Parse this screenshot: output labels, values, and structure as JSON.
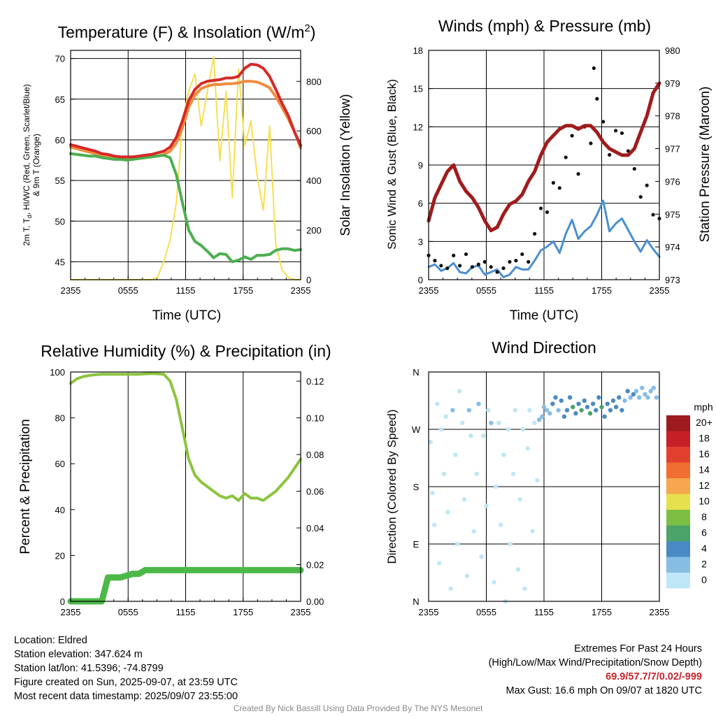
{
  "charts": {
    "temperature": {
      "title": "Temperature (F) & Insolation (W/m",
      "title_sup": "2",
      "title_end": ")",
      "xlabel": "Time (UTC)",
      "ylabel_line1": "2m T, T",
      "ylabel_sub": "d",
      "ylabel_line1_end": ", HI/WC (Red, Green, Scarlet/Blue)",
      "ylabel_line2": "& 9m T (Orange)",
      "y2label": "Solar Insolation (Yellow)"
    },
    "winds": {
      "title": "Winds (mph) & Pressure (mb)",
      "xlabel": "Time (UTC)",
      "ylabel": "Sonic Wind & Gust (Blue, Black)",
      "y2label": "Station Pressure (Maroon)"
    },
    "humidity": {
      "title": "Relative Humidity (%) & Precipitation (in)",
      "ylabel": "Percent & Precipitation"
    },
    "direction": {
      "title": "Wind Direction",
      "ylabel": "Direction (Colored By Speed)",
      "legend_title": "mph"
    }
  },
  "chart_data": [
    {
      "type": "line",
      "id": "temperature",
      "x_ticks": [
        "2355",
        "0555",
        "1155",
        "1755",
        "2355"
      ],
      "ylim": [
        42.8,
        71
      ],
      "y_ticks": [
        45,
        50,
        55,
        60,
        65,
        70
      ],
      "y2lim": [
        0,
        925
      ],
      "y2_ticks": [
        0,
        200,
        400,
        600,
        800
      ],
      "series": [
        {
          "color": "#f08c3c",
          "values": [
            59.1,
            58.9,
            58.7,
            58.5,
            58.3,
            58.1,
            58.0,
            57.8,
            57.7,
            57.6,
            57.6,
            57.7,
            57.8,
            57.9,
            58.0,
            58.2,
            58.6,
            59.6,
            61.5,
            64.0,
            65.5,
            66.3,
            66.6,
            66.8,
            66.8,
            66.9,
            66.9,
            67.0,
            67.2,
            67.2,
            67.1,
            66.8,
            66.4,
            65.3,
            64.0,
            62.6,
            61.0,
            59.0
          ]
        },
        {
          "color": "#4caf50",
          "values": [
            58.3,
            58.2,
            58.1,
            58.0,
            58.0,
            57.8,
            57.7,
            57.6,
            57.6,
            57.5,
            57.6,
            57.7,
            57.8,
            57.9,
            58.0,
            58.1,
            57.8,
            55.7,
            52.2,
            48.9,
            47.5,
            47.0,
            46.3,
            45.5,
            46.0,
            45.9,
            45.0,
            45.2,
            45.6,
            45.3,
            45.8,
            45.8,
            45.9,
            46.4,
            46.6,
            46.6,
            46.4,
            46.5
          ]
        },
        {
          "color": "#d62828",
          "values": [
            59.4,
            59.2,
            59.0,
            58.8,
            58.6,
            58.3,
            58.2,
            58.0,
            57.9,
            57.9,
            57.9,
            58.0,
            58.1,
            58.2,
            58.4,
            58.6,
            59.1,
            60.3,
            62.4,
            64.8,
            66.2,
            66.9,
            67.2,
            67.3,
            67.4,
            67.6,
            67.6,
            67.8,
            68.8,
            69.3,
            69.2,
            68.8,
            67.8,
            66.2,
            64.5,
            63.0,
            61.0,
            59.3
          ]
        }
      ],
      "insolation": {
        "color": "#f5e050",
        "values": [
          0,
          0,
          0,
          0,
          0,
          0,
          0,
          0,
          0,
          0,
          0,
          0,
          0,
          0,
          10,
          75,
          160,
          310,
          640,
          760,
          830,
          620,
          760,
          900,
          480,
          760,
          330,
          850,
          540,
          640,
          420,
          280,
          620,
          140,
          40,
          10,
          0,
          0
        ]
      }
    },
    {
      "type": "line",
      "id": "winds",
      "x_ticks": [
        "2355",
        "0555",
        "1155",
        "1755",
        "2355"
      ],
      "ylim": [
        0,
        18
      ],
      "y_ticks": [
        0,
        3,
        6,
        9,
        12,
        15,
        18
      ],
      "y2lim": [
        973,
        980
      ],
      "y2_ticks": [
        973,
        974,
        975,
        976,
        977,
        978,
        979,
        980
      ],
      "max_gust": 16.6,
      "wind": {
        "color": "#4a8fd1",
        "values": [
          1.0,
          1.2,
          0.7,
          0.9,
          1.3,
          0.6,
          0.5,
          1.0,
          1.1,
          0.4,
          0.6,
          0.8,
          0.2,
          0.4,
          1.0,
          0.8,
          0.8,
          1.5,
          2.3,
          2.6,
          3.0,
          2.1,
          3.6,
          4.7,
          3.2,
          3.8,
          4.2,
          5.1,
          6.2,
          3.8,
          4.4,
          4.8,
          3.9,
          3.0,
          2.2,
          3.1,
          2.4,
          1.8
        ]
      },
      "gust": {
        "color": "#111111",
        "values": [
          1.9,
          1.5,
          1.1,
          0.9,
          1.9,
          1.1,
          2.0,
          1.0,
          1.2,
          1.4,
          1.0,
          0.6,
          0.9,
          1.4,
          1.5,
          2.0,
          1.4,
          3.6,
          5.6,
          5.3,
          7.6,
          7.2,
          9.6,
          11.3,
          8.3,
          12.0,
          10.7,
          14.2,
          12.4,
          9.8,
          11.7,
          11.5,
          10.1,
          8.7,
          6.5,
          7.4,
          5.1,
          4.8
        ]
      },
      "pressure": {
        "color": "#a01c1c",
        "values": [
          974.8,
          975.5,
          975.9,
          976.3,
          976.5,
          976.0,
          975.7,
          975.5,
          975.2,
          974.8,
          974.5,
          974.6,
          975.0,
          975.3,
          975.4,
          975.6,
          976.0,
          976.3,
          976.8,
          977.2,
          977.4,
          977.6,
          977.7,
          977.7,
          977.6,
          977.7,
          977.7,
          977.5,
          977.2,
          977.0,
          976.9,
          976.8,
          976.8,
          977.0,
          977.5,
          978.0,
          978.7,
          979.0
        ]
      }
    },
    {
      "type": "line",
      "id": "humidity",
      "x_ticks": [
        "2355",
        "0555",
        "1155",
        "1755",
        "2355"
      ],
      "ylim": [
        0,
        100
      ],
      "y_ticks": [
        0,
        20,
        40,
        60,
        80,
        100
      ],
      "y2lim": [
        0,
        0.125
      ],
      "y2_ticks": [
        "0.00",
        "0.02",
        "0.04",
        "0.06",
        "0.08",
        "0.10",
        "0.12"
      ],
      "rh": {
        "color": "#8cc43e",
        "values": [
          95,
          97,
          98,
          98.5,
          98.8,
          99,
          99,
          99,
          99,
          99,
          99,
          99,
          99.2,
          99.3,
          99.2,
          99,
          96,
          88,
          75,
          62,
          55,
          52,
          50,
          48,
          46,
          45,
          46,
          44,
          47,
          45,
          45,
          44,
          46,
          48,
          51,
          54,
          58,
          62
        ]
      },
      "precip": {
        "color": "#4cb848",
        "values": [
          0,
          0,
          0,
          0,
          0,
          0,
          0.013,
          0.013,
          0.013,
          0.014,
          0.015,
          0.015,
          0.017,
          0.017,
          0.017,
          0.017,
          0.017,
          0.017,
          0.017,
          0.017,
          0.017,
          0.017,
          0.017,
          0.017,
          0.017,
          0.017,
          0.017,
          0.017,
          0.017,
          0.017,
          0.017,
          0.017,
          0.017,
          0.017,
          0.017,
          0.017,
          0.017,
          0.017
        ]
      }
    },
    {
      "type": "scatter",
      "id": "direction",
      "x_ticks": [
        "2355",
        "0555",
        "1155",
        "1755",
        "2355"
      ],
      "y_ticks": [
        "N",
        "E",
        "S",
        "W",
        "N"
      ],
      "legend_labels": [
        "0",
        "2",
        "4",
        "6",
        "8",
        "10",
        "12",
        "14",
        "16",
        "18",
        "20+"
      ],
      "legend_colors": [
        "#bfe6f7",
        "#86bde4",
        "#4a8ac4",
        "#4ba36a",
        "#7dbf42",
        "#e7e04e",
        "#f6a64d",
        "#f06e2f",
        "#e2402e",
        "#c62026",
        "#9e1a1e"
      ],
      "points": [
        [
          0.2,
          250,
          0
        ],
        [
          0.4,
          170,
          0
        ],
        [
          0.6,
          120,
          0
        ],
        [
          0.9,
          310,
          0
        ],
        [
          1.1,
          60,
          0
        ],
        [
          1.3,
          270,
          0
        ],
        [
          1.6,
          200,
          0
        ],
        [
          1.8,
          290,
          0
        ],
        [
          2.0,
          140,
          0
        ],
        [
          2.3,
          20,
          0
        ],
        [
          2.5,
          300,
          1
        ],
        [
          2.8,
          230,
          0
        ],
        [
          3.0,
          90,
          0
        ],
        [
          3.2,
          330,
          0
        ],
        [
          3.5,
          280,
          0
        ],
        [
          3.7,
          160,
          0
        ],
        [
          4.0,
          40,
          0
        ],
        [
          4.2,
          300,
          1
        ],
        [
          4.4,
          260,
          0
        ],
        [
          4.7,
          110,
          0
        ],
        [
          5.0,
          200,
          0
        ],
        [
          5.2,
          310,
          1
        ],
        [
          5.5,
          70,
          0
        ],
        [
          5.7,
          260,
          0
        ],
        [
          6.0,
          150,
          0
        ],
        [
          6.2,
          300,
          0
        ],
        [
          6.5,
          280,
          1
        ],
        [
          6.8,
          30,
          0
        ],
        [
          7.0,
          180,
          0
        ],
        [
          7.3,
          280,
          0
        ],
        [
          7.5,
          120,
          0
        ],
        [
          7.8,
          230,
          0
        ],
        [
          8.0,
          0,
          0
        ],
        [
          8.3,
          270,
          0
        ],
        [
          8.5,
          90,
          0
        ],
        [
          8.8,
          200,
          0
        ],
        [
          9.0,
          300,
          0
        ],
        [
          9.3,
          50,
          0
        ],
        [
          9.5,
          160,
          0
        ],
        [
          9.8,
          270,
          0
        ],
        [
          10.0,
          20,
          0
        ],
        [
          10.3,
          240,
          0
        ],
        [
          10.5,
          300,
          0
        ],
        [
          10.8,
          110,
          0
        ],
        [
          11.0,
          280,
          0
        ],
        [
          11.3,
          190,
          0
        ],
        [
          11.5,
          285,
          1
        ],
        [
          11.8,
          290,
          1
        ],
        [
          12.0,
          305,
          1
        ],
        [
          12.3,
          300,
          1
        ],
        [
          12.6,
          295,
          1
        ],
        [
          12.9,
          310,
          2
        ],
        [
          13.2,
          320,
          2
        ],
        [
          13.5,
          300,
          1
        ],
        [
          13.8,
          315,
          2
        ],
        [
          14.1,
          290,
          2
        ],
        [
          14.4,
          300,
          2
        ],
        [
          14.7,
          320,
          2
        ],
        [
          15.0,
          305,
          3
        ],
        [
          15.3,
          295,
          2
        ],
        [
          15.6,
          310,
          2
        ],
        [
          15.9,
          300,
          3
        ],
        [
          16.2,
          315,
          2
        ],
        [
          16.5,
          305,
          2
        ],
        [
          16.8,
          295,
          3
        ],
        [
          17.1,
          310,
          2
        ],
        [
          17.4,
          300,
          2
        ],
        [
          17.7,
          320,
          2
        ],
        [
          18.0,
          305,
          3
        ],
        [
          18.3,
          290,
          2
        ],
        [
          18.6,
          310,
          2
        ],
        [
          18.9,
          300,
          2
        ],
        [
          19.2,
          315,
          2
        ],
        [
          19.5,
          305,
          2
        ],
        [
          19.8,
          320,
          2
        ],
        [
          20.1,
          300,
          2
        ],
        [
          20.4,
          315,
          1
        ],
        [
          20.7,
          330,
          2
        ],
        [
          21.0,
          320,
          1
        ],
        [
          21.3,
          325,
          2
        ],
        [
          21.6,
          330,
          1
        ],
        [
          21.9,
          320,
          1
        ],
        [
          22.2,
          335,
          1
        ],
        [
          22.5,
          325,
          1
        ],
        [
          22.8,
          320,
          1
        ],
        [
          23.1,
          330,
          1
        ],
        [
          23.4,
          335,
          1
        ],
        [
          23.7,
          320,
          1
        ]
      ]
    }
  ],
  "footer": {
    "location": "Location: Eldred",
    "elevation": "Station elevation: 347.624 m",
    "latlon": "Station lat/lon: 41.5396; -74.8799",
    "created": "Figure created on Sun, 2025-09-07, at 23:59 UTC",
    "recent": "Most recent data timestamp: 2025/09/07 23:55:00",
    "extremes_title": "Extremes For Past 24 Hours",
    "extremes_subtitle": "(High/Low/Max Wind/Precipitation/Snow Depth)",
    "extremes_values": "69.9/57.7/7/0.02/-999",
    "max_gust": "Max Gust: 16.6 mph On 09/07 at 1820 UTC",
    "credit": "Created By Nick Bassill Using Data Provided By The NYS Mesonet"
  }
}
